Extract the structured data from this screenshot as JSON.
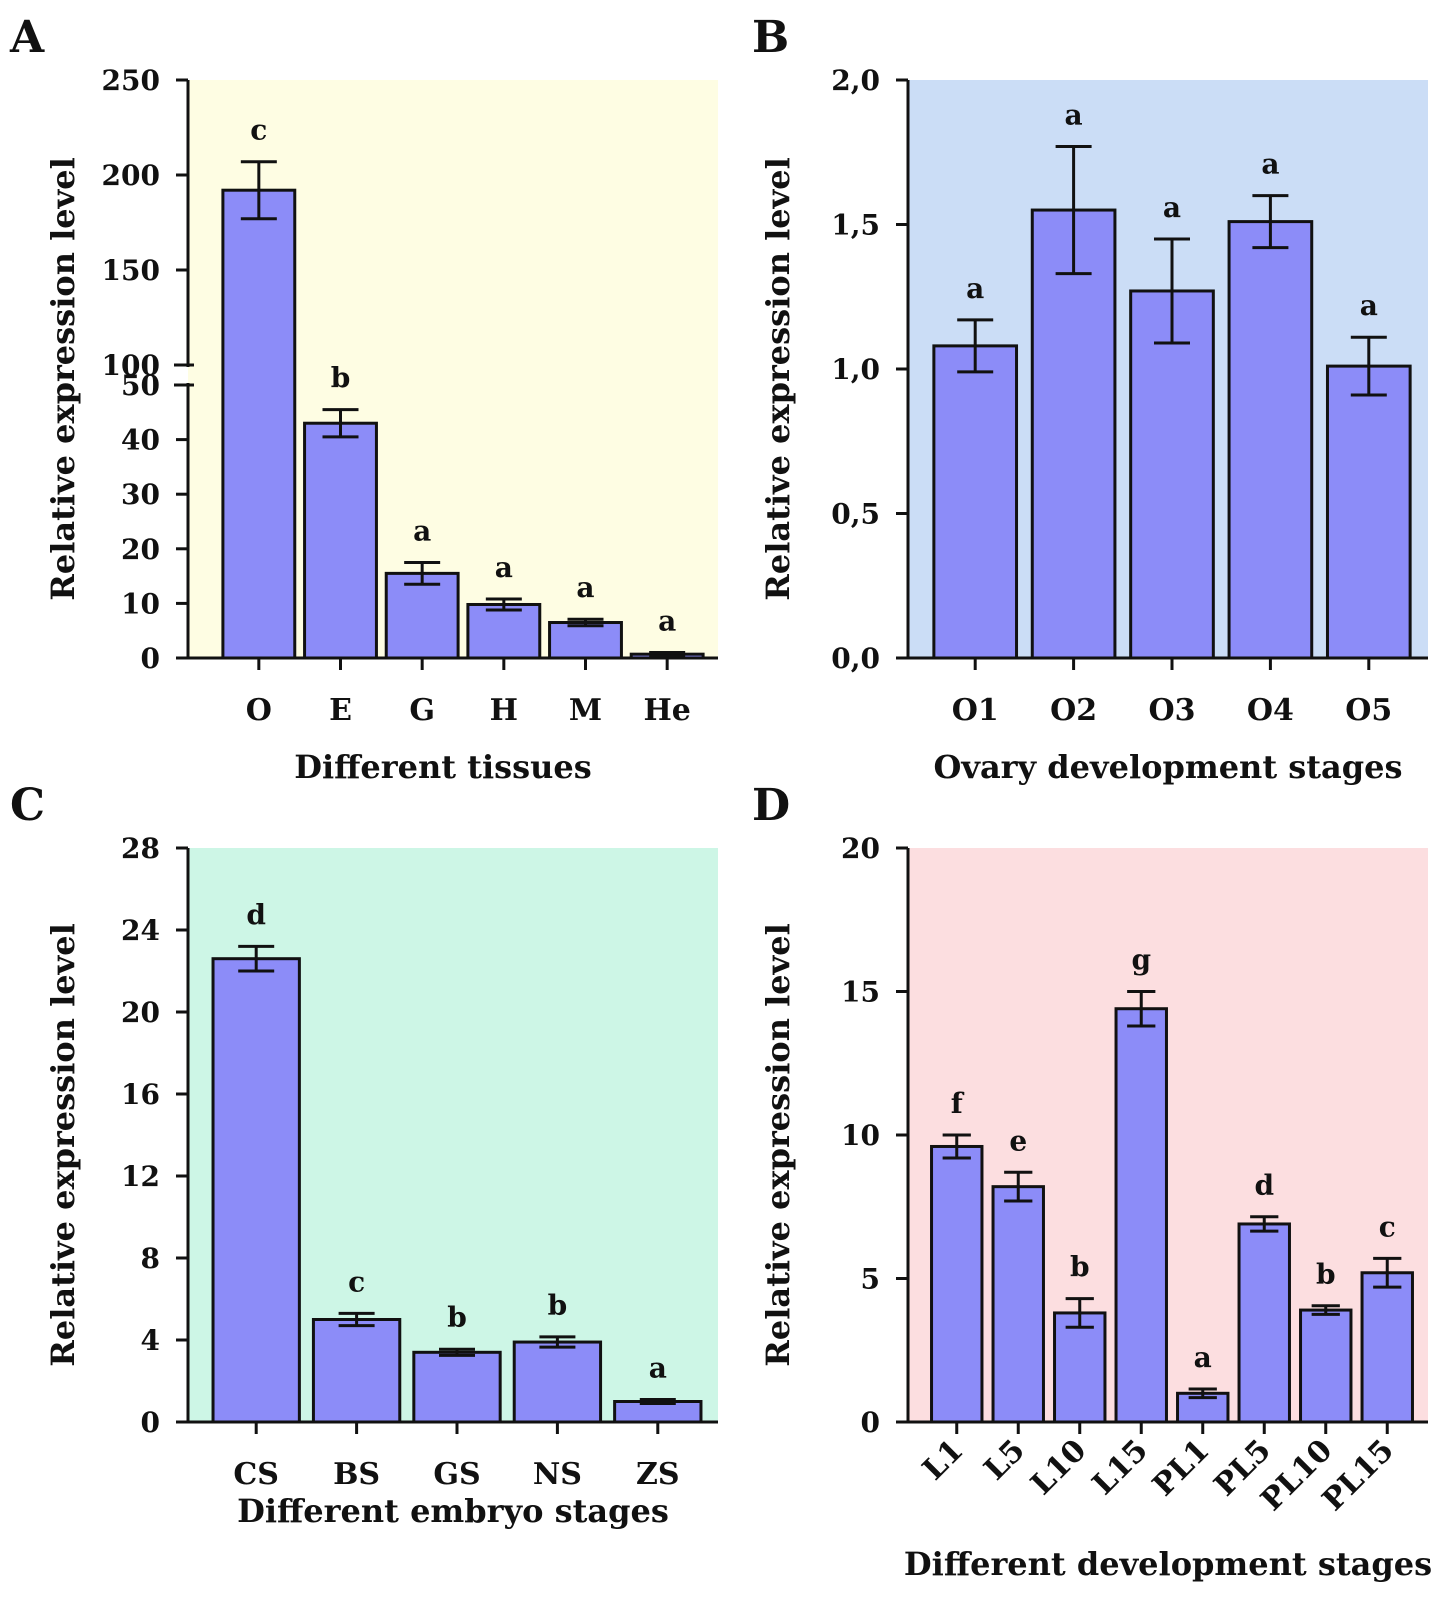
{
  "figure": {
    "bar_color": "#8C8CF8",
    "bar_stroke": "#111111"
  },
  "chart_data": [
    {
      "panel": "A",
      "type": "bar",
      "background": "#FEFDE3",
      "xlabel": "Different tissues",
      "ylabel": "Relative expression level",
      "categories": [
        "O",
        "E",
        "G",
        "H",
        "M",
        "He"
      ],
      "values": [
        192,
        43,
        15.5,
        9.8,
        6.5,
        0.7
      ],
      "errors": [
        15,
        2.5,
        2,
        1,
        0.6,
        0.3
      ],
      "significance": [
        "c",
        "b",
        "a",
        "a",
        "a",
        "a"
      ],
      "axis_break": {
        "lower_range": [
          0,
          50
        ],
        "upper_range": [
          100,
          250
        ]
      },
      "yticks_lower": [
        0,
        10,
        20,
        30,
        40,
        50
      ],
      "yticks_upper": [
        100,
        150,
        200,
        250
      ],
      "ytick_labels_lower": [
        "0",
        "10",
        "20",
        "30",
        "40",
        "50"
      ],
      "ytick_labels_upper": [
        "100",
        "150",
        "200",
        "250"
      ]
    },
    {
      "panel": "B",
      "type": "bar",
      "background": "#CBDDF6",
      "xlabel": "Ovary development stages",
      "ylabel": "Relative expression level",
      "categories": [
        "O1",
        "O2",
        "O3",
        "O4",
        "O5"
      ],
      "values": [
        1.08,
        1.55,
        1.27,
        1.51,
        1.01
      ],
      "errors": [
        0.09,
        0.22,
        0.18,
        0.09,
        0.1
      ],
      "significance": [
        "a",
        "a",
        "a",
        "a",
        "a"
      ],
      "ylim": [
        0,
        2.0
      ],
      "yticks": [
        0,
        0.5,
        1.0,
        1.5,
        2.0
      ],
      "ytick_labels": [
        "0,0",
        "0,5",
        "1,0",
        "1,5",
        "2,0"
      ]
    },
    {
      "panel": "C",
      "type": "bar",
      "background": "#CDF6E6",
      "xlabel": "Different embryo stages",
      "ylabel": "Relative expression level",
      "categories": [
        "CS",
        "BS",
        "GS",
        "NS",
        "ZS"
      ],
      "values": [
        22.6,
        5.0,
        3.4,
        3.9,
        1.0
      ],
      "errors": [
        0.6,
        0.3,
        0.15,
        0.25,
        0.1
      ],
      "significance": [
        "d",
        "c",
        "b",
        "b",
        "a"
      ],
      "ylim": [
        0,
        28
      ],
      "yticks": [
        0,
        4,
        8,
        12,
        16,
        20,
        24,
        28
      ],
      "ytick_labels": [
        "0",
        "4",
        "8",
        "12",
        "16",
        "20",
        "24",
        "28"
      ]
    },
    {
      "panel": "D",
      "type": "bar",
      "background": "#FCDEE0",
      "xlabel": "Different development  stages",
      "ylabel": "Relative expression level",
      "categories": [
        "L1",
        "L5",
        "L10",
        "L15",
        "PL1",
        "PL5",
        "PL10",
        "PL15"
      ],
      "values": [
        9.6,
        8.2,
        3.8,
        14.4,
        1.0,
        6.9,
        3.9,
        5.2
      ],
      "errors": [
        0.4,
        0.5,
        0.5,
        0.6,
        0.15,
        0.25,
        0.15,
        0.5
      ],
      "significance": [
        "f",
        "e",
        "b",
        "g",
        "a",
        "d",
        "b",
        "c"
      ],
      "ylim": [
        0,
        20
      ],
      "yticks": [
        0,
        5,
        10,
        15,
        20
      ],
      "ytick_labels": [
        "0",
        "5",
        "10",
        "15",
        "20"
      ],
      "xtick_rotation": -45
    }
  ]
}
